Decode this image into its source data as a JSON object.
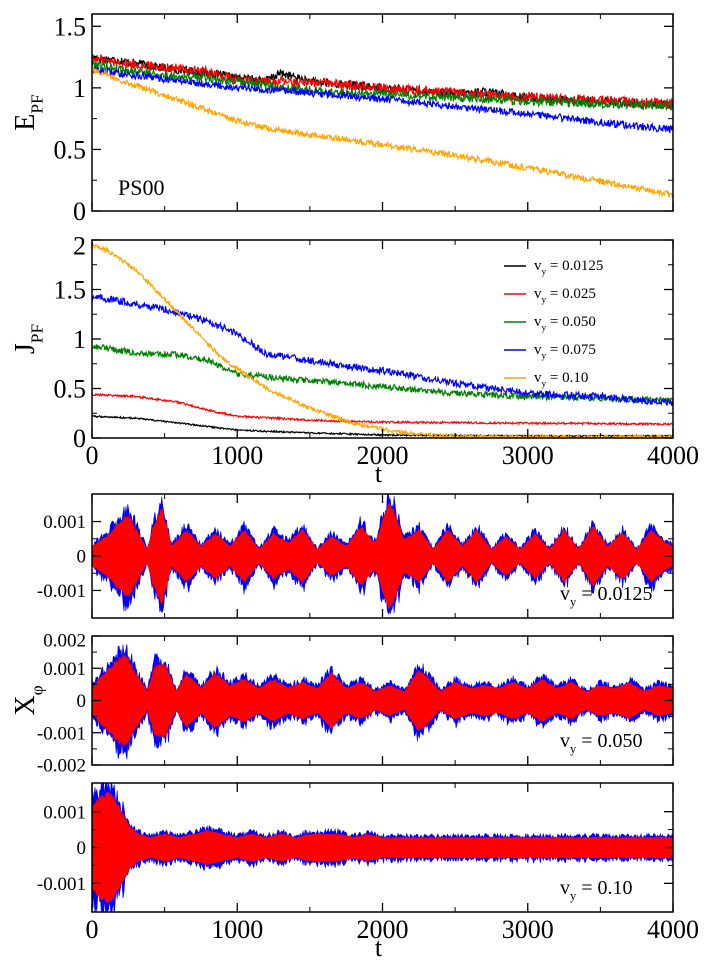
{
  "figure": {
    "colors": {
      "vy_0125": "#000000",
      "vy_025": "#ff0000",
      "vy_050": "#008000",
      "vy_075": "#0000ff",
      "vy_10": "#ffa500",
      "x_under": "#0000ff",
      "x_over": "#ff0000"
    }
  },
  "chart_data": [
    {
      "id": "E_PF",
      "type": "line",
      "ylabel": "E",
      "ylabel_sub": "PF",
      "annotation": "PS00",
      "xlim": [
        0,
        4000
      ],
      "ylim": [
        0,
        1.6
      ],
      "yticks": [
        "0",
        "0.5",
        "1",
        "1.5"
      ],
      "ytick_values": [
        0,
        0.5,
        1,
        1.5
      ],
      "show_xticklabels": false,
      "series": [
        {
          "color_key": "vy_0125",
          "x": [
            0,
            200,
            500,
            800,
            1000,
            1200,
            1300,
            1500,
            2000,
            2500,
            2700,
            3000,
            3500,
            4000
          ],
          "y": [
            1.25,
            1.22,
            1.16,
            1.12,
            1.08,
            1.06,
            1.12,
            1.05,
            1.0,
            0.95,
            0.97,
            0.92,
            0.89,
            0.86
          ],
          "noise": 0.035
        },
        {
          "color_key": "vy_025",
          "x": [
            0,
            200,
            500,
            800,
            1000,
            1200,
            1500,
            2000,
            2500,
            3000,
            3500,
            4000
          ],
          "y": [
            1.24,
            1.2,
            1.17,
            1.13,
            1.06,
            1.05,
            1.05,
            1.0,
            0.96,
            0.93,
            0.9,
            0.87
          ],
          "noise": 0.04
        },
        {
          "color_key": "vy_050",
          "x": [
            0,
            200,
            500,
            800,
            1000,
            1200,
            1500,
            1700,
            2000,
            2500,
            3000,
            3500,
            4000
          ],
          "y": [
            1.2,
            1.15,
            1.1,
            1.08,
            1.05,
            1.02,
            0.98,
            0.96,
            0.95,
            0.92,
            0.89,
            0.87,
            0.85
          ],
          "noise": 0.035
        },
        {
          "color_key": "vy_075",
          "x": [
            0,
            300,
            500,
            800,
            1000,
            1500,
            2000,
            2500,
            3000,
            3500,
            4000
          ],
          "y": [
            1.15,
            1.1,
            1.07,
            1.03,
            1.0,
            0.96,
            0.91,
            0.85,
            0.79,
            0.72,
            0.66
          ],
          "noise": 0.03
        },
        {
          "color_key": "vy_10",
          "x": [
            0,
            300,
            600,
            900,
            1200,
            1500,
            2000,
            2500,
            3000,
            3500,
            4000
          ],
          "y": [
            1.15,
            1.02,
            0.9,
            0.77,
            0.67,
            0.62,
            0.54,
            0.45,
            0.35,
            0.24,
            0.13
          ],
          "noise": 0.025
        }
      ]
    },
    {
      "id": "J_PF",
      "type": "line",
      "ylabel": "J",
      "ylabel_sub": "PF",
      "xlabel": "t",
      "xlim": [
        0,
        4000
      ],
      "ylim": [
        0,
        2
      ],
      "yticks": [
        "0",
        "0.5",
        "1",
        "1.5",
        "2"
      ],
      "ytick_values": [
        0,
        0.5,
        1,
        1.5,
        2
      ],
      "xticks": [
        "0",
        "1000",
        "2000",
        "3000",
        "4000"
      ],
      "xtick_values": [
        0,
        1000,
        2000,
        3000,
        4000
      ],
      "legend_position": "top-right",
      "series": [
        {
          "name": "v",
          "name_sub": "y",
          "name_rest": " = 0.0125",
          "color_key": "vy_0125",
          "x": [
            0,
            300,
            600,
            1000,
            1500,
            2000,
            3000,
            4000
          ],
          "y": [
            0.22,
            0.2,
            0.15,
            0.08,
            0.05,
            0.03,
            0.02,
            0.02
          ],
          "noise": 0.008
        },
        {
          "name": "v",
          "name_sub": "y",
          "name_rest": " = 0.025",
          "color_key": "vy_025",
          "x": [
            0,
            300,
            600,
            800,
            1000,
            1500,
            2000,
            3000,
            4000
          ],
          "y": [
            0.44,
            0.42,
            0.36,
            0.28,
            0.22,
            0.18,
            0.16,
            0.15,
            0.14
          ],
          "noise": 0.01
        },
        {
          "name": "v",
          "name_sub": "y",
          "name_rest": " = 0.050",
          "color_key": "vy_050",
          "x": [
            0,
            300,
            600,
            800,
            1000,
            1300,
            1500,
            2000,
            2500,
            3000,
            3500,
            4000
          ],
          "y": [
            0.93,
            0.86,
            0.84,
            0.78,
            0.65,
            0.6,
            0.58,
            0.52,
            0.45,
            0.42,
            0.4,
            0.38
          ],
          "noise": 0.03
        },
        {
          "name": "v",
          "name_sub": "y",
          "name_rest": " = 0.075",
          "color_key": "vy_075",
          "x": [
            0,
            200,
            500,
            800,
            1000,
            1200,
            1500,
            2000,
            2500,
            3000,
            3500,
            4000
          ],
          "y": [
            1.43,
            1.38,
            1.3,
            1.18,
            1.05,
            0.85,
            0.78,
            0.68,
            0.55,
            0.45,
            0.42,
            0.35
          ],
          "noise": 0.035
        },
        {
          "name": "v",
          "name_sub": "y",
          "name_rest": " = 0.10",
          "color_key": "vy_10",
          "x": [
            0,
            100,
            300,
            500,
            700,
            900,
            1200,
            1500,
            1800,
            2100,
            2400,
            2700,
            3000,
            4000
          ],
          "y": [
            1.95,
            1.9,
            1.7,
            1.4,
            1.1,
            0.8,
            0.5,
            0.3,
            0.15,
            0.06,
            0.02,
            0.01,
            0.01,
            0.01
          ],
          "noise": 0.02
        }
      ]
    },
    {
      "id": "X_phi_1",
      "type": "area",
      "xlim": [
        0,
        4000
      ],
      "ylim": [
        -0.0018,
        0.0018
      ],
      "yticks": [
        "-0.001",
        "0",
        "0.001"
      ],
      "ytick_values": [
        -0.001,
        0,
        0.001
      ],
      "show_xticklabels": false,
      "label": "v",
      "label_sub": "y",
      "label_rest": " = 0.0125",
      "envelope": {
        "x": [
          0,
          100,
          250,
          300,
          380,
          420,
          480,
          550,
          650,
          750,
          850,
          950,
          1050,
          1150,
          1250,
          1350,
          1450,
          1550,
          1650,
          1750,
          1850,
          1950,
          2050,
          2150,
          2250,
          2350,
          2450,
          2550,
          2650,
          2750,
          2850,
          2950,
          3050,
          3150,
          3250,
          3350,
          3450,
          3550,
          3650,
          3750,
          3850,
          3950,
          4000
        ],
        "y": [
          0.0003,
          0.0006,
          0.0013,
          0.00085,
          0.0002,
          0.0009,
          0.0015,
          0.0003,
          0.0008,
          0.0003,
          0.0007,
          0.0003,
          0.0008,
          0.0002,
          0.0007,
          0.0004,
          0.0008,
          0.0002,
          0.0006,
          0.0003,
          0.0009,
          0.0004,
          0.0017,
          0.0005,
          0.0008,
          0.0002,
          0.0008,
          0.0003,
          0.0008,
          0.0002,
          0.0006,
          0.0002,
          0.0007,
          0.0002,
          0.0008,
          0.0002,
          0.0009,
          0.0003,
          0.0007,
          0.0002,
          0.0008,
          0.0004,
          0.0003
        ]
      }
    },
    {
      "id": "X_phi_2",
      "type": "area",
      "ylabel": "X",
      "ylabel_sub": "φ",
      "xlim": [
        0,
        4000
      ],
      "ylim": [
        -0.002,
        0.002
      ],
      "yticks": [
        "-0.002",
        "-0.001",
        "0",
        "0.001",
        "0.002"
      ],
      "ytick_values": [
        -0.002,
        -0.001,
        0,
        0.001,
        0.002
      ],
      "show_xticklabels": false,
      "label": "v",
      "label_sub": "y",
      "label_rest": " = 0.050",
      "envelope": {
        "x": [
          0,
          50,
          150,
          230,
          300,
          380,
          430,
          500,
          580,
          650,
          750,
          850,
          950,
          1050,
          1150,
          1250,
          1350,
          1450,
          1550,
          1650,
          1750,
          1850,
          1950,
          2050,
          2150,
          2250,
          2300,
          2400,
          2500,
          2600,
          2700,
          2800,
          2900,
          3000,
          3100,
          3200,
          3300,
          3400,
          3500,
          3600,
          3700,
          3800,
          3900,
          4000
        ],
        "y": [
          0.0004,
          0.0007,
          0.0012,
          0.0015,
          0.0009,
          0.0003,
          0.0011,
          0.0012,
          0.0003,
          0.0009,
          0.0004,
          0.0009,
          0.0005,
          0.0007,
          0.0004,
          0.0007,
          0.0004,
          0.0006,
          0.0004,
          0.0009,
          0.0004,
          0.0006,
          0.0003,
          0.0005,
          0.0003,
          0.001,
          0.0008,
          0.0003,
          0.0006,
          0.0004,
          0.0005,
          0.0004,
          0.0006,
          0.0004,
          0.0007,
          0.0004,
          0.0006,
          0.0003,
          0.0005,
          0.0004,
          0.0006,
          0.0003,
          0.0005,
          0.0004
        ]
      }
    },
    {
      "id": "X_phi_3",
      "type": "area",
      "xlabel": "t",
      "xlim": [
        0,
        4000
      ],
      "ylim": [
        -0.0018,
        0.0018
      ],
      "yticks": [
        "-0.001",
        "0",
        "0.001"
      ],
      "ytick_values": [
        -0.001,
        0,
        0.001
      ],
      "xticks": [
        "0",
        "1000",
        "2000",
        "3000",
        "4000"
      ],
      "xtick_values": [
        0,
        1000,
        2000,
        3000,
        4000
      ],
      "label": "v",
      "label_sub": "y",
      "label_rest": " = 0.10",
      "envelope": {
        "x": [
          0,
          50,
          100,
          150,
          200,
          260,
          320,
          400,
          500,
          600,
          700,
          800,
          900,
          1000,
          1100,
          1200,
          1300,
          1400,
          1500,
          1600,
          1700,
          1800,
          1900,
          2000,
          2200,
          2400,
          2600,
          2800,
          3000,
          3200,
          3400,
          3600,
          3800,
          4000
        ],
        "y": [
          0.0012,
          0.0015,
          0.0016,
          0.0015,
          0.0011,
          0.0006,
          0.0004,
          0.0003,
          0.0004,
          0.0003,
          0.0004,
          0.0005,
          0.0004,
          0.0003,
          0.0004,
          0.0003,
          0.0004,
          0.0003,
          0.0004,
          0.0004,
          0.0004,
          0.0003,
          0.0004,
          0.0003,
          0.0003,
          0.0003,
          0.0003,
          0.0003,
          0.0003,
          0.0003,
          0.0003,
          0.0003,
          0.0003,
          0.0003
        ]
      }
    }
  ]
}
